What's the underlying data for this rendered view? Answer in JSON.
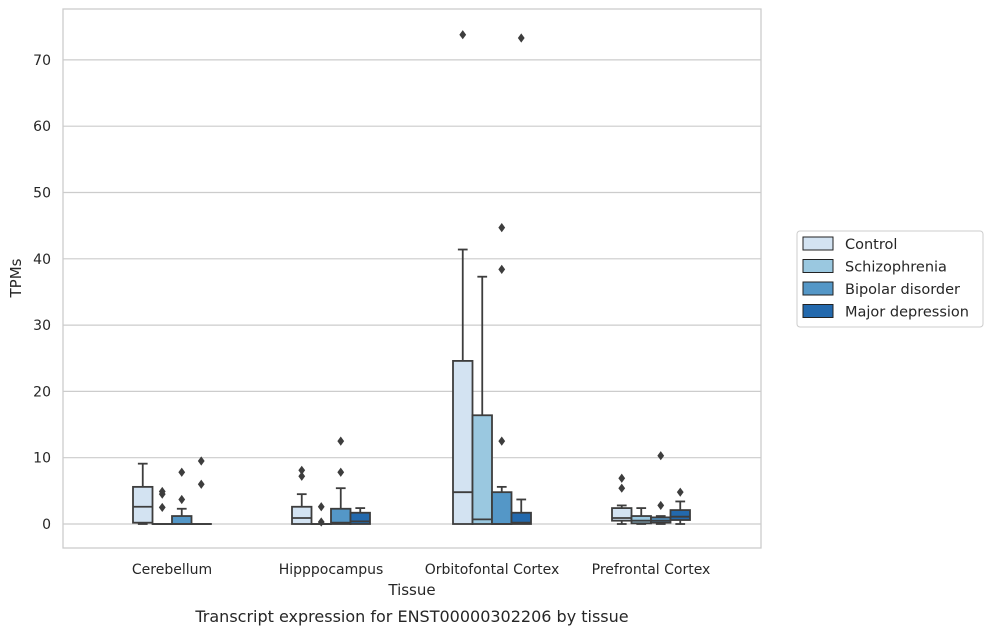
{
  "chart_data": {
    "type": "box",
    "caption": "Transcript expression for ENST00000302206 by tissue",
    "xlabel": "Tissue",
    "ylabel": "TPMs",
    "ylim": [
      -3.6,
      77.2
    ],
    "yticks": [
      0,
      10,
      20,
      30,
      40,
      50,
      60,
      70
    ],
    "grid": "horizontal",
    "legend_position": "right",
    "categories": [
      "Cerebellum",
      "Hipppocampus",
      "Orbitofontal Cortex",
      "Prefrontal Cortex"
    ],
    "series": [
      {
        "name": "Control",
        "color": "#d3e3f2",
        "boxes": [
          {
            "min": 0,
            "q1": 0.2,
            "median": 2.6,
            "q3": 5.6,
            "max": 9.1,
            "outliers": []
          },
          {
            "min": 0,
            "q1": 0,
            "median": 0.9,
            "q3": 2.6,
            "max": 4.5,
            "outliers": [
              7.2,
              8.1
            ]
          },
          {
            "min": 0,
            "q1": 0,
            "median": 4.8,
            "q3": 24.6,
            "max": 41.4,
            "outliers": [
              73.8
            ]
          },
          {
            "min": 0,
            "q1": 0.5,
            "median": 0.9,
            "q3": 2.4,
            "max": 2.8,
            "outliers": [
              5.4,
              6.9
            ]
          }
        ]
      },
      {
        "name": "Schizophrenia",
        "color": "#9ac8e0",
        "boxes": [
          {
            "min": 0,
            "q1": 0,
            "median": 0,
            "q3": 0,
            "max": 0,
            "outliers": [
              2.5,
              4.5,
              4.9
            ]
          },
          {
            "min": 0,
            "q1": 0,
            "median": 0,
            "q3": 0,
            "max": 0,
            "outliers": [
              0.3,
              2.6
            ]
          },
          {
            "min": 0,
            "q1": 0,
            "median": 0.7,
            "q3": 16.4,
            "max": 37.3,
            "outliers": []
          },
          {
            "min": 0,
            "q1": 0.1,
            "median": 0.5,
            "q3": 1.2,
            "max": 2.4,
            "outliers": []
          }
        ]
      },
      {
        "name": "Bipolar disorder",
        "color": "#5497c7",
        "boxes": [
          {
            "min": 0,
            "q1": 0,
            "median": 0,
            "q3": 1.2,
            "max": 2.3,
            "outliers": [
              3.7,
              7.8
            ]
          },
          {
            "min": 0,
            "q1": 0,
            "median": 0.2,
            "q3": 2.3,
            "max": 5.4,
            "outliers": [
              7.8,
              12.5
            ]
          },
          {
            "min": 0,
            "q1": 0,
            "median": 0,
            "q3": 4.8,
            "max": 5.6,
            "outliers": [
              12.5,
              38.4,
              44.7
            ]
          },
          {
            "min": 0,
            "q1": 0.2,
            "median": 0.5,
            "q3": 1.0,
            "max": 1.2,
            "outliers": [
              2.8,
              10.3
            ]
          }
        ]
      },
      {
        "name": "Major depression",
        "color": "#2369ad",
        "boxes": [
          {
            "min": 0,
            "q1": 0,
            "median": 0,
            "q3": 0,
            "max": 0,
            "outliers": [
              6.0,
              9.5
            ]
          },
          {
            "min": 0,
            "q1": 0,
            "median": 0.4,
            "q3": 1.7,
            "max": 2.4,
            "outliers": []
          },
          {
            "min": 0,
            "q1": 0,
            "median": 0.2,
            "q3": 1.7,
            "max": 3.7,
            "outliers": [
              73.3
            ]
          },
          {
            "min": 0,
            "q1": 0.6,
            "median": 1.1,
            "q3": 2.1,
            "max": 3.4,
            "outliers": [
              4.8
            ]
          }
        ]
      }
    ]
  }
}
